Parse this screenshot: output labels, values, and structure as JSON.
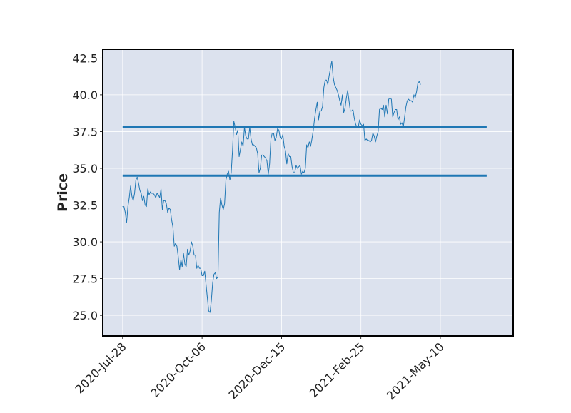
{
  "chart_data": {
    "type": "line",
    "ylabel": "Price",
    "xlabel": "",
    "title": "",
    "ylim": [
      23.6,
      43.1
    ],
    "xlim": [
      -15,
      295
    ],
    "grid": true,
    "colors": {
      "background": "#dce2ee",
      "line": "#1f77b4",
      "grid": "#ffffff",
      "frame": "#000000"
    },
    "yticks": [
      {
        "value": 25.0,
        "label": "25.0"
      },
      {
        "value": 27.5,
        "label": "27.5"
      },
      {
        "value": 30.0,
        "label": "30.0"
      },
      {
        "value": 32.5,
        "label": "32.5"
      },
      {
        "value": 35.0,
        "label": "35.0"
      },
      {
        "value": 37.5,
        "label": "37.5"
      },
      {
        "value": 40.0,
        "label": "40.0"
      },
      {
        "value": 42.5,
        "label": "42.5"
      }
    ],
    "xticks": [
      {
        "value": 0,
        "label": "2020-Jul-28"
      },
      {
        "value": 60,
        "label": "2020-Oct-06"
      },
      {
        "value": 120,
        "label": "2020-Dec-15"
      },
      {
        "value": 180,
        "label": "2021-Feb-25"
      },
      {
        "value": 240,
        "label": "2021-May-10"
      }
    ],
    "hlines": [
      {
        "y": 37.8,
        "x_start": 0,
        "x_end": 275
      },
      {
        "y": 34.5,
        "x_start": 0,
        "x_end": 275
      }
    ],
    "series": [
      {
        "points": [
          [
            0,
            32.4
          ],
          [
            1,
            32.4
          ],
          [
            2,
            32.0
          ],
          [
            3,
            31.3
          ],
          [
            4,
            32.4
          ],
          [
            5,
            33.0
          ],
          [
            6,
            33.8
          ],
          [
            7,
            33.1
          ],
          [
            8,
            32.8
          ],
          [
            9,
            33.3
          ],
          [
            10,
            34.2
          ],
          [
            11,
            34.4
          ],
          [
            12,
            34.0
          ],
          [
            13,
            33.5
          ],
          [
            14,
            33.3
          ],
          [
            15,
            32.8
          ],
          [
            16,
            33.1
          ],
          [
            17,
            32.5
          ],
          [
            18,
            32.4
          ],
          [
            19,
            33.6
          ],
          [
            20,
            33.2
          ],
          [
            21,
            33.4
          ],
          [
            22,
            33.3
          ],
          [
            23,
            33.3
          ],
          [
            24,
            33.2
          ],
          [
            25,
            33.0
          ],
          [
            26,
            33.3
          ],
          [
            27,
            33.2
          ],
          [
            28,
            33.0
          ],
          [
            29,
            33.6
          ],
          [
            30,
            32.2
          ],
          [
            31,
            32.8
          ],
          [
            32,
            32.8
          ],
          [
            33,
            32.6
          ],
          [
            34,
            32.0
          ],
          [
            35,
            32.3
          ],
          [
            36,
            32.2
          ],
          [
            37,
            31.5
          ],
          [
            38,
            31.0
          ],
          [
            39,
            29.7
          ],
          [
            40,
            29.9
          ],
          [
            41,
            29.7
          ],
          [
            42,
            29.0
          ],
          [
            43,
            28.1
          ],
          [
            44,
            28.8
          ],
          [
            45,
            28.3
          ],
          [
            46,
            29.2
          ],
          [
            47,
            28.5
          ],
          [
            48,
            28.3
          ],
          [
            49,
            29.5
          ],
          [
            50,
            29.1
          ],
          [
            51,
            29.4
          ],
          [
            52,
            30.0
          ],
          [
            53,
            29.7
          ],
          [
            54,
            29.1
          ],
          [
            55,
            29.1
          ],
          [
            56,
            28.2
          ],
          [
            57,
            28.4
          ],
          [
            58,
            28.2
          ],
          [
            59,
            28.2
          ],
          [
            60,
            27.7
          ],
          [
            61,
            27.7
          ],
          [
            62,
            28.0
          ],
          [
            63,
            27.1
          ],
          [
            64,
            26.2
          ],
          [
            65,
            25.3
          ],
          [
            66,
            25.2
          ],
          [
            67,
            26.0
          ],
          [
            68,
            27.2
          ],
          [
            69,
            27.8
          ],
          [
            70,
            27.9
          ],
          [
            71,
            27.5
          ],
          [
            72,
            27.6
          ],
          [
            73,
            32.0
          ],
          [
            74,
            33.0
          ],
          [
            75,
            32.5
          ],
          [
            76,
            32.2
          ],
          [
            77,
            32.6
          ],
          [
            78,
            34.2
          ],
          [
            79,
            34.6
          ],
          [
            80,
            34.8
          ],
          [
            81,
            34.2
          ],
          [
            82,
            34.7
          ],
          [
            83,
            36.2
          ],
          [
            84,
            38.2
          ],
          [
            85,
            37.8
          ],
          [
            86,
            37.3
          ],
          [
            87,
            37.6
          ],
          [
            88,
            35.8
          ],
          [
            89,
            36.3
          ],
          [
            90,
            36.8
          ],
          [
            91,
            36.5
          ],
          [
            92,
            37.8
          ],
          [
            93,
            37.2
          ],
          [
            94,
            37.0
          ],
          [
            95,
            37.0
          ],
          [
            96,
            37.8
          ],
          [
            97,
            37.0
          ],
          [
            98,
            36.6
          ],
          [
            99,
            36.6
          ],
          [
            100,
            36.5
          ],
          [
            101,
            36.4
          ],
          [
            102,
            36.0
          ],
          [
            103,
            34.7
          ],
          [
            104,
            35.0
          ],
          [
            105,
            35.9
          ],
          [
            106,
            35.9
          ],
          [
            107,
            35.8
          ],
          [
            108,
            35.7
          ],
          [
            109,
            35.5
          ],
          [
            110,
            34.6
          ],
          [
            111,
            35.3
          ],
          [
            112,
            37.0
          ],
          [
            113,
            37.4
          ],
          [
            114,
            37.4
          ],
          [
            115,
            36.9
          ],
          [
            116,
            37.1
          ],
          [
            117,
            37.7
          ],
          [
            118,
            37.6
          ],
          [
            119,
            37.1
          ],
          [
            120,
            37.0
          ],
          [
            121,
            37.3
          ],
          [
            122,
            36.5
          ],
          [
            123,
            36.2
          ],
          [
            124,
            35.3
          ],
          [
            125,
            36.0
          ],
          [
            126,
            35.8
          ],
          [
            127,
            35.8
          ],
          [
            128,
            35.1
          ],
          [
            129,
            34.7
          ],
          [
            130,
            34.7
          ],
          [
            131,
            35.2
          ],
          [
            132,
            35.0
          ],
          [
            133,
            35.1
          ],
          [
            134,
            35.2
          ],
          [
            135,
            34.6
          ],
          [
            136,
            34.8
          ],
          [
            137,
            34.7
          ],
          [
            138,
            35.0
          ],
          [
            139,
            36.6
          ],
          [
            140,
            36.4
          ],
          [
            141,
            36.8
          ],
          [
            142,
            36.5
          ],
          [
            143,
            37.0
          ],
          [
            144,
            37.6
          ],
          [
            145,
            38.4
          ],
          [
            146,
            39.0
          ],
          [
            147,
            39.5
          ],
          [
            148,
            38.3
          ],
          [
            149,
            38.9
          ],
          [
            150,
            38.9
          ],
          [
            151,
            39.2
          ],
          [
            152,
            40.5
          ],
          [
            153,
            41.0
          ],
          [
            154,
            41.0
          ],
          [
            155,
            40.7
          ],
          [
            156,
            41.3
          ],
          [
            157,
            41.8
          ],
          [
            158,
            42.3
          ],
          [
            159,
            41.2
          ],
          [
            160,
            40.7
          ],
          [
            161,
            40.5
          ],
          [
            162,
            40.3
          ],
          [
            163,
            40.0
          ],
          [
            164,
            39.6
          ],
          [
            165,
            39.3
          ],
          [
            166,
            40.0
          ],
          [
            167,
            38.8
          ],
          [
            168,
            39.1
          ],
          [
            169,
            39.8
          ],
          [
            170,
            40.3
          ],
          [
            171,
            39.6
          ],
          [
            172,
            38.9
          ],
          [
            173,
            38.9
          ],
          [
            174,
            39.0
          ],
          [
            175,
            38.4
          ],
          [
            176,
            38.0
          ],
          [
            177,
            37.8
          ],
          [
            178,
            37.8
          ],
          [
            179,
            38.3
          ],
          [
            180,
            38.0
          ],
          [
            181,
            37.9
          ],
          [
            182,
            38.0
          ],
          [
            183,
            36.9
          ],
          [
            184,
            37.0
          ],
          [
            185,
            36.9
          ],
          [
            186,
            36.9
          ],
          [
            187,
            36.8
          ],
          [
            188,
            36.9
          ],
          [
            189,
            37.4
          ],
          [
            190,
            37.2
          ],
          [
            191,
            36.8
          ],
          [
            192,
            37.2
          ],
          [
            193,
            37.5
          ],
          [
            194,
            39.0
          ],
          [
            195,
            39.1
          ],
          [
            196,
            39.0
          ],
          [
            197,
            39.3
          ],
          [
            198,
            38.5
          ],
          [
            199,
            39.3
          ],
          [
            200,
            38.7
          ],
          [
            201,
            39.7
          ],
          [
            202,
            39.8
          ],
          [
            203,
            39.7
          ],
          [
            204,
            38.5
          ],
          [
            205,
            38.8
          ],
          [
            206,
            39.0
          ],
          [
            207,
            39.0
          ],
          [
            208,
            38.3
          ],
          [
            209,
            38.5
          ],
          [
            210,
            38.0
          ],
          [
            211,
            38.1
          ],
          [
            212,
            37.8
          ],
          [
            213,
            38.5
          ],
          [
            214,
            39.2
          ],
          [
            215,
            39.6
          ],
          [
            216,
            39.7
          ],
          [
            217,
            39.6
          ],
          [
            218,
            39.6
          ],
          [
            219,
            39.5
          ],
          [
            220,
            40.0
          ],
          [
            221,
            39.8
          ],
          [
            222,
            40.2
          ],
          [
            223,
            40.8
          ],
          [
            224,
            40.9
          ],
          [
            225,
            40.7
          ]
        ]
      }
    ]
  }
}
